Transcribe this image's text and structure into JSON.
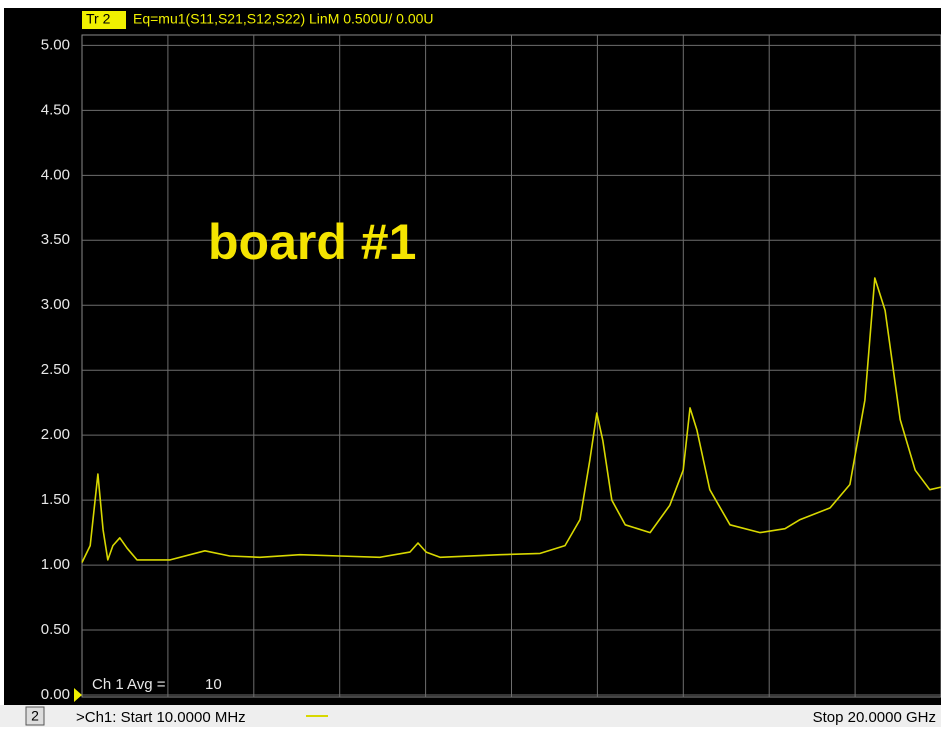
{
  "chart_data": {
    "type": "line",
    "trace_id": "Tr 2",
    "trace_header": "Eq=mu1(S11,S21,S12,S22) LinM 0.500U/  0.00U",
    "annotation": "board #1",
    "avg_label": "Ch 1 Avg =",
    "avg_value": "10",
    "channel_number": "2",
    "start_label": ">Ch1:  Start 10.0000 MHz",
    "stop_label": "Stop 20.0000 GHz",
    "xlim": [
      0.01,
      20
    ],
    "ylim": [
      0,
      5.08
    ],
    "yticks": [
      {
        "value": 0,
        "label": "0.00"
      },
      {
        "value": 0.5,
        "label": "0.50"
      },
      {
        "value": 1,
        "label": "1.00"
      },
      {
        "value": 1.5,
        "label": "1.50"
      },
      {
        "value": 2,
        "label": "2.00"
      },
      {
        "value": 2.5,
        "label": "2.50"
      },
      {
        "value": 3,
        "label": "3.00"
      },
      {
        "value": 3.5,
        "label": "3.50"
      },
      {
        "value": 4,
        "label": "4.00"
      },
      {
        "value": 4.5,
        "label": "4.50"
      },
      {
        "value": 5,
        "label": "5.00"
      }
    ],
    "grid": true,
    "series": [
      {
        "color": "#d8d800",
        "x": [
          0.01,
          0.2,
          0.38,
          0.5,
          0.61,
          0.73,
          0.89,
          1.06,
          1.29,
          2.06,
          2.87,
          3.45,
          4.15,
          5.08,
          6.01,
          6.94,
          7.64,
          7.83,
          8.02,
          8.34,
          9.74,
          10.67,
          11.25,
          11.6,
          11.83,
          11.99,
          12.13,
          12.34,
          12.65,
          13.23,
          13.69,
          14.0,
          14.16,
          14.32,
          14.62,
          15.09,
          15.79,
          16.37,
          16.72,
          17.42,
          17.88,
          18.23,
          18.46,
          18.7,
          19.05,
          19.4,
          19.74,
          20.0
        ],
        "values": [
          1.02,
          1.15,
          1.7,
          1.27,
          1.04,
          1.15,
          1.21,
          1.13,
          1.04,
          1.04,
          1.11,
          1.07,
          1.06,
          1.08,
          1.07,
          1.06,
          1.1,
          1.17,
          1.1,
          1.06,
          1.08,
          1.09,
          1.15,
          1.35,
          1.81,
          2.17,
          1.96,
          1.5,
          1.31,
          1.25,
          1.46,
          1.73,
          2.21,
          2.04,
          1.58,
          1.31,
          1.25,
          1.28,
          1.35,
          1.44,
          1.62,
          2.27,
          3.21,
          2.96,
          2.12,
          1.73,
          1.58,
          1.6
        ]
      }
    ]
  }
}
